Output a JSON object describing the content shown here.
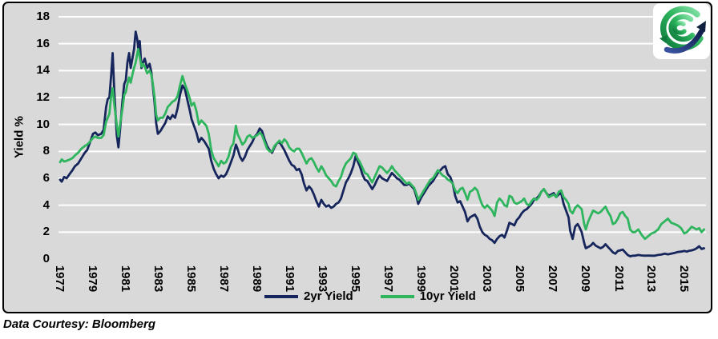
{
  "footer": {
    "credit": "Data Courtesy: Bloomberg"
  },
  "logo": {
    "description": "globe-swirl-with-arrow-logo",
    "green_dark": "#0e7a3c",
    "green": "#2eb55e",
    "green_light": "#8ce6ae",
    "navy": "#16265c",
    "box_background": "#ffffff"
  },
  "colors": {
    "plot_background": "#d9d9d9",
    "gridline": "#ffffff",
    "frame_border": "#000000",
    "series_2yr": "#16265c",
    "series_10yr": "#2eb55e"
  },
  "chart_data": {
    "type": "line",
    "title": "",
    "xlabel": "",
    "ylabel": "Yield %",
    "ylim": [
      0,
      18
    ],
    "xlim": [
      1976.7,
      2016.45
    ],
    "yticks": [
      0,
      2,
      4,
      6,
      8,
      10,
      12,
      14,
      16,
      18
    ],
    "xticks": [
      1977,
      1979,
      1981,
      1983,
      1985,
      1987,
      1989,
      1991,
      1993,
      1995,
      1997,
      1999,
      2001,
      2003,
      2005,
      2007,
      2009,
      2011,
      2013,
      2015
    ],
    "grid": {
      "horizontal": true,
      "vertical": false,
      "color": "#ffffff"
    },
    "legend_position": "bottom-center",
    "x": [
      1977.0,
      1977.1,
      1977.25,
      1977.4,
      1977.6,
      1977.75,
      1977.9,
      1978.1,
      1978.3,
      1978.5,
      1978.65,
      1978.8,
      1979.0,
      1979.15,
      1979.3,
      1979.5,
      1979.65,
      1979.8,
      1979.9,
      1980.0,
      1980.1,
      1980.2,
      1980.3,
      1980.45,
      1980.55,
      1980.65,
      1980.8,
      1980.9,
      1981.0,
      1981.1,
      1981.2,
      1981.3,
      1981.4,
      1981.5,
      1981.6,
      1981.7,
      1981.75,
      1981.85,
      1981.95,
      1982.05,
      1982.15,
      1982.3,
      1982.45,
      1982.55,
      1982.65,
      1982.75,
      1982.85,
      1982.95,
      1983.1,
      1983.25,
      1983.4,
      1983.55,
      1983.7,
      1983.85,
      1984.0,
      1984.15,
      1984.3,
      1984.45,
      1984.6,
      1984.75,
      1984.9,
      1985.0,
      1985.15,
      1985.3,
      1985.45,
      1985.6,
      1985.75,
      1985.9,
      1986.05,
      1986.2,
      1986.35,
      1986.5,
      1986.65,
      1986.8,
      1986.95,
      1987.1,
      1987.25,
      1987.4,
      1987.55,
      1987.7,
      1987.8,
      1987.95,
      1988.1,
      1988.25,
      1988.4,
      1988.55,
      1988.7,
      1988.85,
      1989.0,
      1989.15,
      1989.3,
      1989.45,
      1989.6,
      1989.75,
      1989.9,
      1990.05,
      1990.2,
      1990.35,
      1990.5,
      1990.65,
      1990.8,
      1990.95,
      1991.1,
      1991.25,
      1991.4,
      1991.55,
      1991.7,
      1991.85,
      1992.0,
      1992.15,
      1992.3,
      1992.45,
      1992.6,
      1992.75,
      1992.9,
      1993.05,
      1993.2,
      1993.35,
      1993.5,
      1993.65,
      1993.8,
      1993.95,
      1994.1,
      1994.25,
      1994.4,
      1994.55,
      1994.7,
      1994.85,
      1995.0,
      1995.1,
      1995.25,
      1995.4,
      1995.55,
      1995.7,
      1995.85,
      1996.0,
      1996.15,
      1996.3,
      1996.45,
      1996.6,
      1996.75,
      1996.9,
      1997.05,
      1997.2,
      1997.35,
      1997.5,
      1997.65,
      1997.8,
      1997.95,
      1998.1,
      1998.25,
      1998.4,
      1998.55,
      1998.7,
      1998.8,
      1998.95,
      1999.1,
      1999.25,
      1999.4,
      1999.55,
      1999.7,
      1999.85,
      2000.0,
      2000.15,
      2000.3,
      2000.45,
      2000.6,
      2000.75,
      2000.9,
      2001.05,
      2001.2,
      2001.35,
      2001.5,
      2001.65,
      2001.8,
      2001.95,
      2002.1,
      2002.25,
      2002.4,
      2002.55,
      2002.7,
      2002.85,
      2003.0,
      2003.15,
      2003.3,
      2003.45,
      2003.6,
      2003.75,
      2003.9,
      2004.05,
      2004.2,
      2004.35,
      2004.5,
      2004.65,
      2004.8,
      2004.95,
      2005.1,
      2005.25,
      2005.4,
      2005.55,
      2005.7,
      2005.85,
      2006.0,
      2006.15,
      2006.3,
      2006.45,
      2006.6,
      2006.75,
      2006.9,
      2007.05,
      2007.2,
      2007.35,
      2007.5,
      2007.65,
      2007.8,
      2007.95,
      2008.05,
      2008.2,
      2008.35,
      2008.5,
      2008.6,
      2008.75,
      2008.9,
      2009.0,
      2009.15,
      2009.3,
      2009.45,
      2009.6,
      2009.75,
      2009.9,
      2010.05,
      2010.2,
      2010.35,
      2010.5,
      2010.65,
      2010.8,
      2010.95,
      2011.1,
      2011.25,
      2011.4,
      2011.55,
      2011.7,
      2011.85,
      2012.0,
      2012.2,
      2012.4,
      2012.6,
      2012.8,
      2013.0,
      2013.2,
      2013.4,
      2013.6,
      2013.8,
      2014.0,
      2014.2,
      2014.4,
      2014.6,
      2014.8,
      2015.0,
      2015.15,
      2015.3,
      2015.45,
      2015.6,
      2015.75,
      2015.9,
      2016.05,
      2016.2
    ],
    "series": [
      {
        "name": "2yr Yield",
        "color": "#16265c",
        "values": [
          5.9,
          5.75,
          6.1,
          6.0,
          6.35,
          6.6,
          6.9,
          7.1,
          7.5,
          7.9,
          8.1,
          8.6,
          9.3,
          9.4,
          9.2,
          9.3,
          9.6,
          11.3,
          11.9,
          12.0,
          13.5,
          15.3,
          12.5,
          9.2,
          8.3,
          9.6,
          11.8,
          13.0,
          13.3,
          14.6,
          15.3,
          14.2,
          14.9,
          15.6,
          16.9,
          16.3,
          15.7,
          16.2,
          14.2,
          14.6,
          14.9,
          14.2,
          14.5,
          13.9,
          12.8,
          11.6,
          10.1,
          9.3,
          9.5,
          9.8,
          10.1,
          10.6,
          10.4,
          10.7,
          10.5,
          11.2,
          12.2,
          12.9,
          12.6,
          11.8,
          11.0,
          10.4,
          9.9,
          9.4,
          8.7,
          9.0,
          8.8,
          8.5,
          8.2,
          7.3,
          6.7,
          6.3,
          6.0,
          6.2,
          6.1,
          6.3,
          6.7,
          7.2,
          7.7,
          8.5,
          8.2,
          7.6,
          7.3,
          7.6,
          8.1,
          8.4,
          8.7,
          9.1,
          9.3,
          9.7,
          9.5,
          8.9,
          8.4,
          8.1,
          7.9,
          8.3,
          8.6,
          8.7,
          8.4,
          8.1,
          7.7,
          7.3,
          7.0,
          6.9,
          6.6,
          6.7,
          6.3,
          5.6,
          5.1,
          5.4,
          5.2,
          4.8,
          4.3,
          3.9,
          4.4,
          4.1,
          3.9,
          4.0,
          3.8,
          3.9,
          4.1,
          4.2,
          4.5,
          5.1,
          5.7,
          6.0,
          6.4,
          6.9,
          7.7,
          7.3,
          6.9,
          6.3,
          5.9,
          5.8,
          5.5,
          5.2,
          5.5,
          5.9,
          6.2,
          6.0,
          5.9,
          5.8,
          6.1,
          6.4,
          6.2,
          6.0,
          5.9,
          5.7,
          5.5,
          5.5,
          5.6,
          5.4,
          5.2,
          4.6,
          4.1,
          4.5,
          4.8,
          5.1,
          5.4,
          5.6,
          5.8,
          6.1,
          6.4,
          6.6,
          6.8,
          6.9,
          6.3,
          6.1,
          5.6,
          4.7,
          4.2,
          4.3,
          3.9,
          3.5,
          2.8,
          3.1,
          3.2,
          3.3,
          3.0,
          2.4,
          2.0,
          1.8,
          1.7,
          1.5,
          1.4,
          1.2,
          1.5,
          1.7,
          1.8,
          1.6,
          2.1,
          2.7,
          2.6,
          2.5,
          2.9,
          3.1,
          3.4,
          3.6,
          3.7,
          3.9,
          4.1,
          4.4,
          4.5,
          4.7,
          5.0,
          5.2,
          4.9,
          4.7,
          4.8,
          4.9,
          4.6,
          4.8,
          4.9,
          4.1,
          3.6,
          3.1,
          2.1,
          1.5,
          2.4,
          2.6,
          2.4,
          2.0,
          1.2,
          0.8,
          0.9,
          1.0,
          1.2,
          1.0,
          0.9,
          0.8,
          0.9,
          1.1,
          0.9,
          0.7,
          0.5,
          0.4,
          0.6,
          0.65,
          0.7,
          0.5,
          0.3,
          0.2,
          0.25,
          0.25,
          0.3,
          0.27,
          0.25,
          0.26,
          0.25,
          0.25,
          0.3,
          0.33,
          0.4,
          0.35,
          0.4,
          0.45,
          0.52,
          0.55,
          0.6,
          0.55,
          0.62,
          0.65,
          0.7,
          0.8,
          0.95,
          0.75,
          0.8
        ]
      },
      {
        "name": "10yr Yield",
        "color": "#2eb55e",
        "values": [
          7.2,
          7.4,
          7.25,
          7.3,
          7.4,
          7.5,
          7.7,
          7.9,
          8.2,
          8.4,
          8.5,
          8.7,
          9.0,
          9.1,
          9.0,
          9.0,
          9.2,
          10.2,
          10.5,
          10.8,
          12.0,
          12.7,
          11.5,
          10.0,
          9.1,
          10.0,
          11.2,
          12.2,
          12.4,
          13.0,
          13.5,
          13.1,
          13.7,
          14.2,
          14.6,
          15.3,
          15.6,
          15.0,
          14.3,
          14.5,
          14.3,
          13.8,
          14.0,
          13.7,
          13.0,
          12.0,
          10.7,
          10.3,
          10.5,
          10.5,
          10.8,
          11.3,
          11.5,
          11.7,
          11.8,
          12.1,
          12.9,
          13.6,
          13.0,
          12.5,
          11.9,
          11.4,
          11.6,
          11.0,
          10.0,
          10.3,
          10.1,
          9.9,
          9.3,
          8.1,
          7.5,
          7.2,
          6.9,
          7.3,
          7.1,
          7.2,
          7.6,
          8.3,
          8.6,
          9.9,
          9.3,
          8.9,
          8.5,
          8.7,
          9.1,
          9.2,
          9.0,
          9.1,
          9.2,
          9.4,
          9.2,
          8.7,
          8.2,
          8.0,
          8.0,
          8.4,
          8.6,
          8.8,
          8.6,
          8.9,
          8.7,
          8.3,
          8.1,
          8.0,
          8.2,
          8.2,
          7.9,
          7.5,
          7.1,
          7.4,
          7.5,
          7.2,
          6.8,
          6.5,
          6.9,
          6.6,
          6.2,
          6.0,
          5.8,
          5.5,
          5.4,
          5.8,
          6.1,
          6.7,
          7.1,
          7.3,
          7.5,
          7.9,
          7.8,
          7.5,
          7.2,
          6.8,
          6.4,
          6.3,
          6.0,
          5.7,
          6.1,
          6.5,
          6.9,
          6.8,
          6.6,
          6.4,
          6.6,
          6.9,
          6.6,
          6.4,
          6.2,
          6.0,
          5.8,
          5.6,
          5.7,
          5.5,
          5.3,
          4.8,
          4.4,
          4.7,
          5.0,
          5.3,
          5.6,
          5.9,
          6.0,
          6.3,
          6.6,
          6.4,
          6.2,
          6.1,
          5.9,
          5.8,
          5.6,
          5.1,
          4.9,
          5.2,
          5.3,
          4.9,
          4.4,
          5.0,
          5.1,
          5.3,
          5.1,
          4.5,
          4.0,
          3.8,
          4.0,
          3.8,
          3.6,
          3.2,
          4.2,
          4.5,
          4.3,
          4.0,
          3.9,
          4.7,
          4.6,
          4.2,
          4.1,
          4.2,
          4.3,
          4.5,
          4.1,
          4.0,
          4.3,
          4.5,
          4.4,
          4.6,
          5.0,
          5.2,
          4.9,
          4.6,
          4.7,
          4.8,
          4.6,
          5.0,
          5.1,
          4.6,
          4.4,
          4.1,
          3.6,
          3.4,
          3.8,
          4.0,
          3.9,
          3.7,
          2.6,
          2.2,
          2.8,
          3.2,
          3.6,
          3.5,
          3.4,
          3.5,
          3.7,
          3.9,
          3.5,
          3.2,
          2.6,
          2.7,
          3.0,
          3.4,
          3.5,
          3.2,
          3.0,
          2.2,
          2.0,
          2.0,
          2.2,
          1.8,
          1.5,
          1.7,
          1.9,
          2.0,
          2.2,
          2.6,
          2.8,
          3.0,
          2.7,
          2.6,
          2.5,
          2.3,
          1.9,
          2.0,
          2.2,
          2.4,
          2.3,
          2.2,
          2.3,
          2.0,
          2.2
        ]
      }
    ]
  }
}
